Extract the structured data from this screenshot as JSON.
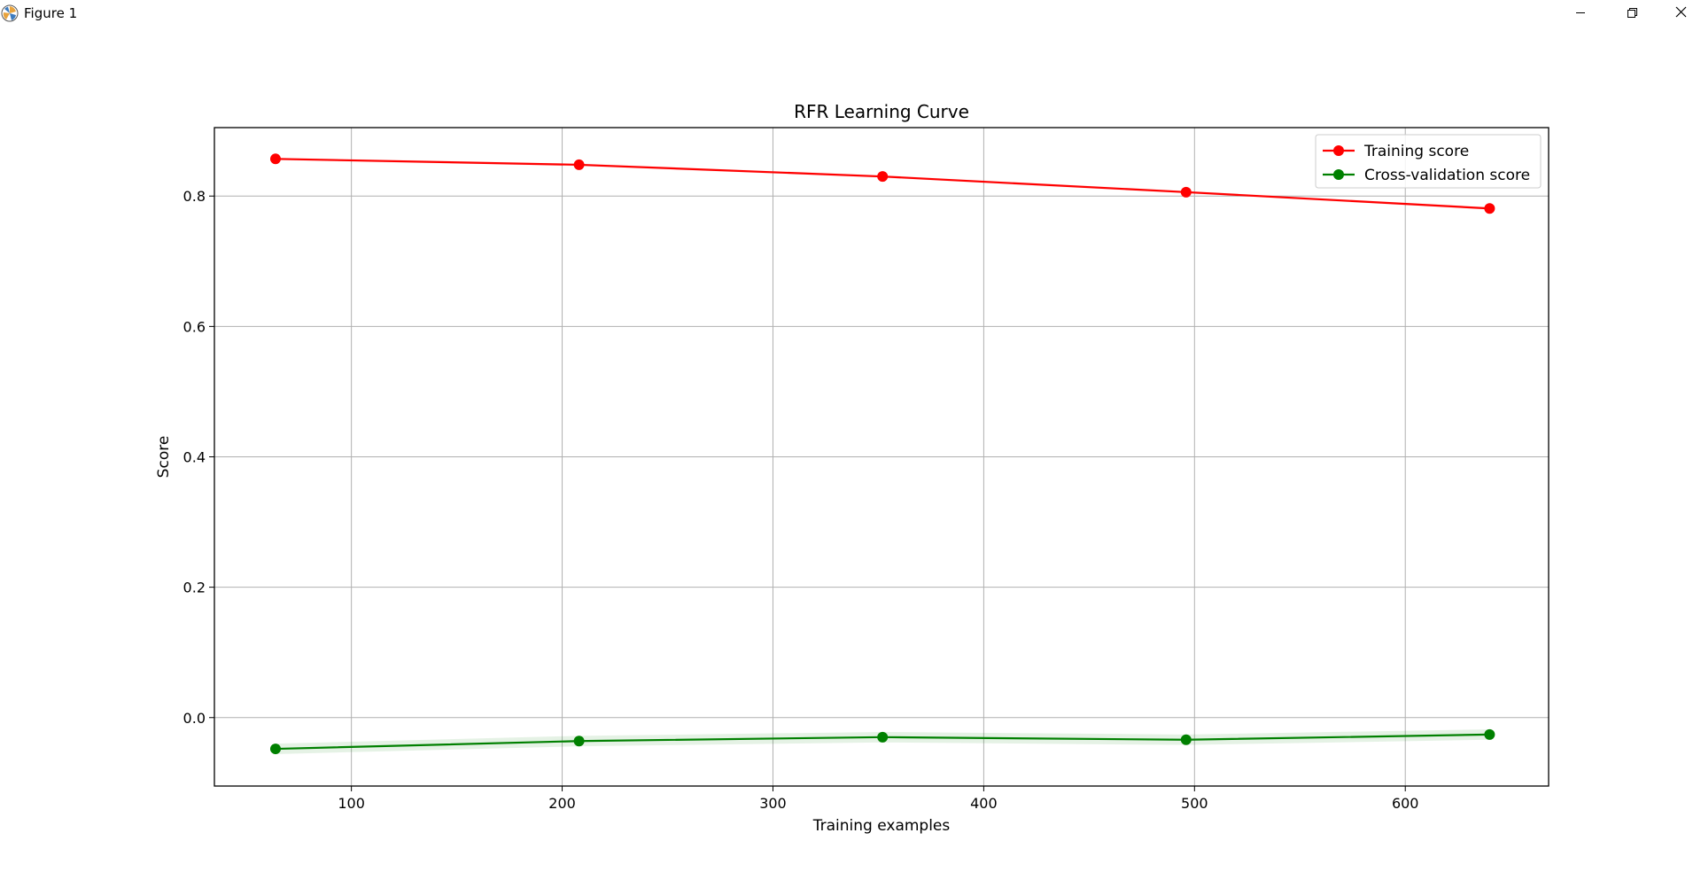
{
  "window": {
    "title": "Figure 1",
    "icons": {
      "app": "matplotlib-logo-icon",
      "minimize": "minimize-icon",
      "maximize": "restore-icon",
      "close": "close-icon"
    }
  },
  "chart_data": {
    "type": "line",
    "title": "RFR Learning Curve",
    "xlabel": "Training examples",
    "ylabel": "Score",
    "xlim": [
      35,
      668
    ],
    "ylim": [
      -0.105,
      0.905
    ],
    "xticks": [
      100,
      200,
      300,
      400,
      500,
      600
    ],
    "yticks": [
      0.0,
      0.2,
      0.4,
      0.6,
      0.8
    ],
    "ytick_labels": [
      "0.0",
      "0.2",
      "0.4",
      "0.6",
      "0.8"
    ],
    "grid": true,
    "legend_position": "top-right",
    "x": [
      64,
      208,
      352,
      496,
      640
    ],
    "series": [
      {
        "name": "Training score",
        "color": "#ff0000",
        "values": [
          0.857,
          0.848,
          0.83,
          0.806,
          0.781
        ],
        "band": 0.002
      },
      {
        "name": "Cross-validation score",
        "color": "#008000",
        "band_color": "#008000",
        "values": [
          -0.048,
          -0.036,
          -0.03,
          -0.034,
          -0.026
        ],
        "band": 0.008
      }
    ]
  }
}
